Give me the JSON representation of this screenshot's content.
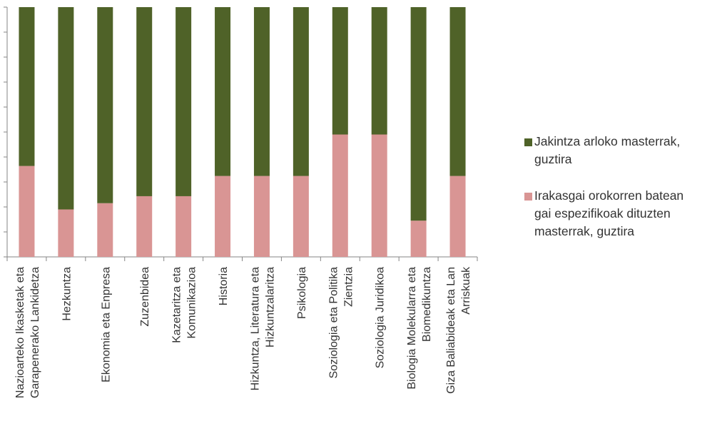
{
  "chart_data": {
    "type": "bar",
    "stacked": true,
    "normalized": true,
    "categories": [
      [
        "Nazioarteko Ikasketak eta",
        "Garapenerako Lankidetza"
      ],
      [
        "Hezkuntza"
      ],
      [
        "Ekonomia eta Enpresa"
      ],
      [
        "Zuzenbidea"
      ],
      [
        "Kazetaritza eta",
        "Komunikazioa"
      ],
      [
        "Historia"
      ],
      [
        "Hizkuntza, Literatura eta",
        "Hizkuntzalaritza"
      ],
      [
        "Psikologia"
      ],
      [
        "Soziologia eta Politika",
        "Zientzia"
      ],
      [
        "Soziologia Juridikoa"
      ],
      [
        "Biologia Molekularra eta",
        "Biomedikuntza"
      ],
      [
        "Giza Baliabideak eta Lan",
        "Arriskuak"
      ]
    ],
    "series": [
      {
        "name": "Irakasgai orokorren batean gai espezifikoak dituzten masterrak, guztira",
        "color": "#d99594",
        "values": [
          0.364,
          0.19,
          0.215,
          0.243,
          0.243,
          0.324,
          0.324,
          0.324,
          0.49,
          0.49,
          0.145,
          0.324
        ]
      },
      {
        "name": "Jakintza arloko masterrak, guztira",
        "color": "#4f6228",
        "values": [
          0.636,
          0.81,
          0.785,
          0.757,
          0.757,
          0.676,
          0.676,
          0.676,
          0.51,
          0.51,
          0.855,
          0.676
        ]
      }
    ],
    "ylim": [
      0,
      1
    ],
    "y_gridlines": false,
    "legend": [
      {
        "label_lines": [
          "Jakintza arloko masterrak,",
          "guztira"
        ],
        "color": "#4f6228"
      },
      {
        "label_lines": [
          "Irakasgai orokorren batean",
          "gai espezifikoak dituzten",
          "masterrak, guztira"
        ],
        "color": "#d99594"
      }
    ],
    "legend_position": "right"
  }
}
